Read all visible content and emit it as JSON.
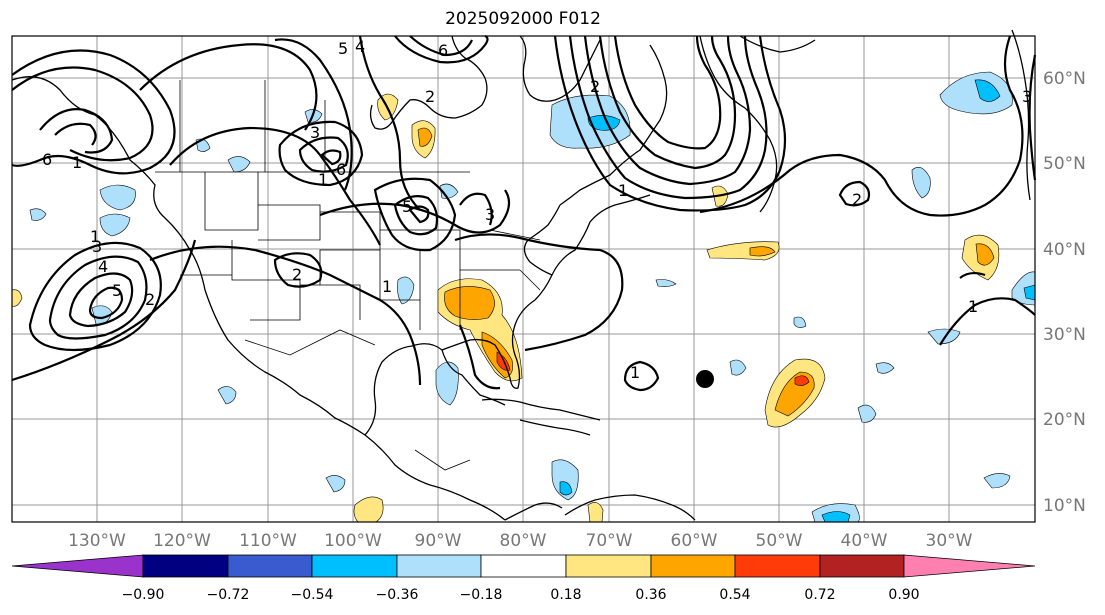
{
  "title": "2025092000 F012",
  "map": {
    "longitude_labels": [
      "130°W",
      "120°W",
      "110°W",
      "100°W",
      "90°W",
      "80°W",
      "70°W",
      "60°W",
      "50°W",
      "40°W",
      "30°W"
    ],
    "latitude_labels": [
      "60°N",
      "50°N",
      "40°N",
      "30°N",
      "20°N",
      "10°N"
    ],
    "contour_labels": [
      "5",
      "4",
      "6",
      "2",
      "3",
      "6",
      "1",
      "5",
      "3",
      "2",
      "1",
      "2",
      "1",
      "4",
      "3",
      "5",
      "6",
      "1",
      "1",
      "2",
      "1",
      "3",
      "2",
      "1"
    ],
    "marker": "storm-center-dot"
  },
  "colorbar": {
    "tick_labels": [
      "−0.90",
      "−0.72",
      "−0.54",
      "−0.36",
      "−0.18",
      "0.18",
      "0.36",
      "0.54",
      "0.72",
      "0.90"
    ],
    "colors": [
      "#9a33cc",
      "#000080",
      "#3a5bd0",
      "#00bfff",
      "#aee0fb",
      "#ffffff",
      "#ffe680",
      "#ffa500",
      "#ff3b0a",
      "#b22222",
      "#ff80b0"
    ]
  }
}
